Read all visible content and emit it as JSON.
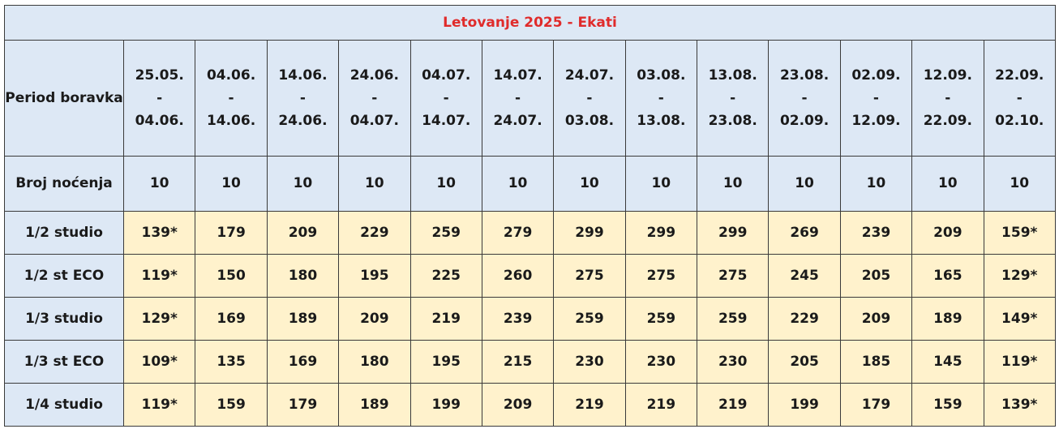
{
  "title": "Letovanje 2025 - Ekati",
  "period_label": "Period boravka",
  "nights_label": "Broj noćenja",
  "periods": [
    {
      "from": "25.05.",
      "sep": "-",
      "to": "04.06."
    },
    {
      "from": "04.06.",
      "sep": "-",
      "to": "14.06."
    },
    {
      "from": "14.06.",
      "sep": "-",
      "to": "24.06."
    },
    {
      "from": "24.06.",
      "sep": "-",
      "to": "04.07."
    },
    {
      "from": "04.07.",
      "sep": "-",
      "to": "14.07."
    },
    {
      "from": "14.07.",
      "sep": "-",
      "to": "24.07."
    },
    {
      "from": "24.07.",
      "sep": "-",
      "to": "03.08."
    },
    {
      "from": "03.08.",
      "sep": "-",
      "to": "13.08."
    },
    {
      "from": "13.08.",
      "sep": "-",
      "to": "23.08."
    },
    {
      "from": "23.08.",
      "sep": "-",
      "to": "02.09."
    },
    {
      "from": "02.09.",
      "sep": "-",
      "to": "12.09."
    },
    {
      "from": "12.09.",
      "sep": "-",
      "to": "22.09."
    },
    {
      "from": "22.09.",
      "sep": "-",
      "to": "02.10."
    }
  ],
  "nights": [
    "10",
    "10",
    "10",
    "10",
    "10",
    "10",
    "10",
    "10",
    "10",
    "10",
    "10",
    "10",
    "10"
  ],
  "rows": [
    {
      "label": "1/2 studio",
      "prices": [
        "139*",
        "179",
        "209",
        "229",
        "259",
        "279",
        "299",
        "299",
        "299",
        "269",
        "239",
        "209",
        "159*"
      ]
    },
    {
      "label": "1/2 st ECO",
      "prices": [
        "119*",
        "150",
        "180",
        "195",
        "225",
        "260",
        "275",
        "275",
        "275",
        "245",
        "205",
        "165",
        "129*"
      ]
    },
    {
      "label": "1/3 studio",
      "prices": [
        "129*",
        "169",
        "189",
        "209",
        "219",
        "239",
        "259",
        "259",
        "259",
        "229",
        "209",
        "189",
        "149*"
      ]
    },
    {
      "label": "1/3 st ECO",
      "prices": [
        "109*",
        "135",
        "169",
        "180",
        "195",
        "215",
        "230",
        "230",
        "230",
        "205",
        "185",
        "145",
        "119*"
      ]
    },
    {
      "label": "1/4 studio",
      "prices": [
        "119*",
        "159",
        "179",
        "189",
        "199",
        "209",
        "219",
        "219",
        "219",
        "199",
        "179",
        "159",
        "139*"
      ]
    }
  ],
  "colors": {
    "title": "#e02b2b",
    "header_bg": "#dde8f5",
    "price_bg": "#fff2cc",
    "border": "#3a3a3a"
  }
}
